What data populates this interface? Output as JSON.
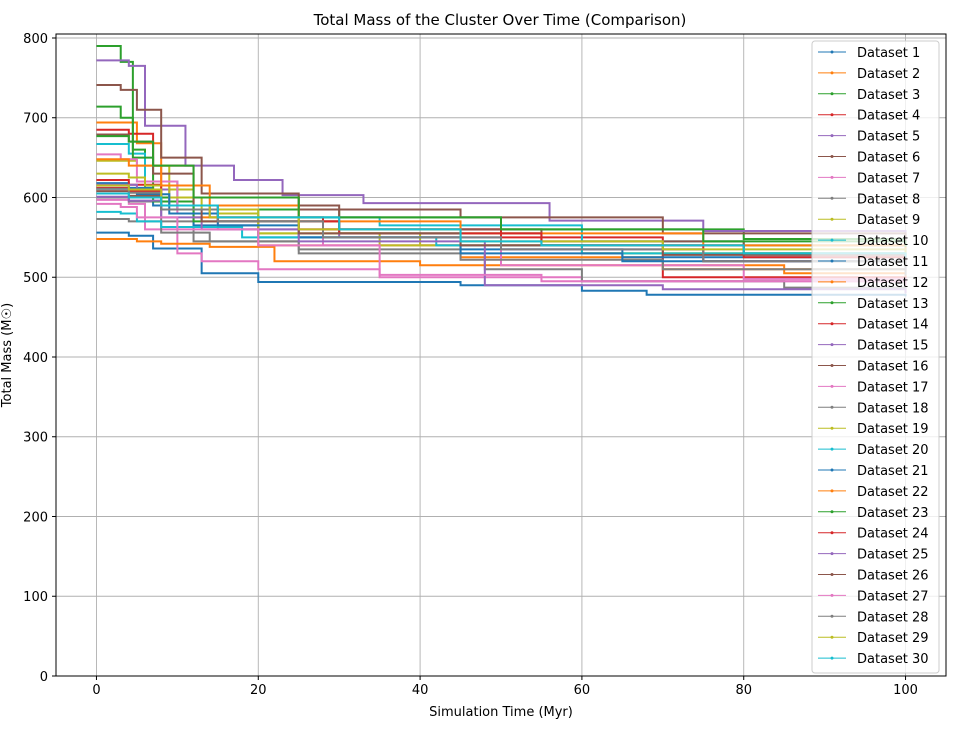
{
  "chart_data": {
    "type": "line",
    "title": "Total Mass of the Cluster Over Time (Comparison)",
    "xlabel": "Simulation Time (Myr)",
    "ylabel": "Total Mass (M☉)",
    "xlim": [
      -5,
      105
    ],
    "ylim": [
      0,
      805
    ],
    "xticks": [
      0,
      20,
      40,
      60,
      80,
      100
    ],
    "yticks": [
      0,
      100,
      200,
      300,
      400,
      500,
      600,
      700,
      800
    ],
    "grid": true,
    "legend_position": "top-right",
    "marker": "dot",
    "colors": [
      "#1f77b4",
      "#ff7f0e",
      "#2ca02c",
      "#d62728",
      "#9467bd",
      "#8c564b",
      "#e377c2",
      "#7f7f7f",
      "#bcbd22",
      "#17becf"
    ],
    "series": [
      {
        "name": "Dataset 1",
        "x": [
          0,
          4,
          7,
          13,
          20,
          45,
          60,
          68,
          100
        ],
        "y": [
          556,
          552,
          536,
          505,
          494,
          490,
          483,
          478,
          476
        ]
      },
      {
        "name": "Dataset 2",
        "x": [
          0,
          5,
          8,
          12,
          20,
          45,
          70,
          85,
          100
        ],
        "y": [
          694,
          668,
          600,
          575,
          540,
          525,
          515,
          505,
          500
        ]
      },
      {
        "name": "Dataset 3",
        "x": [
          0,
          3,
          4.5,
          6,
          10,
          30,
          50,
          80,
          100
        ],
        "y": [
          790,
          770,
          660,
          600,
          585,
          575,
          560,
          548,
          545
        ]
      },
      {
        "name": "Dataset 4",
        "x": [
          0,
          4,
          7,
          12,
          25,
          50,
          70,
          100
        ],
        "y": [
          685,
          680,
          640,
          600,
          560,
          550,
          500,
          490
        ]
      },
      {
        "name": "Dataset 5",
        "x": [
          0,
          4,
          6,
          11,
          17,
          23,
          33,
          56,
          75,
          100
        ],
        "y": [
          772,
          765,
          690,
          640,
          622,
          603,
          593,
          571,
          558,
          535
        ]
      },
      {
        "name": "Dataset 6",
        "x": [
          0,
          3,
          5,
          8,
          13,
          25,
          45,
          70,
          100
        ],
        "y": [
          741,
          735,
          710,
          650,
          605,
          585,
          575,
          555,
          540
        ]
      },
      {
        "name": "Dataset 7",
        "x": [
          0,
          4,
          6,
          10,
          13,
          20,
          35,
          60,
          100
        ],
        "y": [
          597,
          592,
          560,
          530,
          520,
          510,
          500,
          495,
          490
        ]
      },
      {
        "name": "Dataset 8",
        "x": [
          0,
          4,
          8,
          12,
          25,
          48,
          60,
          85,
          100
        ],
        "y": [
          600,
          595,
          570,
          545,
          530,
          510,
          495,
          487,
          485
        ]
      },
      {
        "name": "Dataset 9",
        "x": [
          0,
          5,
          9,
          12,
          20,
          40,
          60,
          100
        ],
        "y": [
          646,
          640,
          610,
          580,
          555,
          540,
          530,
          525
        ]
      },
      {
        "name": "Dataset 10",
        "x": [
          0,
          4,
          6,
          10,
          20,
          35,
          60,
          80,
          100
        ],
        "y": [
          667,
          655,
          620,
          585,
          575,
          565,
          545,
          530,
          520
        ]
      },
      {
        "name": "Dataset 11",
        "x": [
          0,
          4,
          7,
          12,
          20,
          45,
          65,
          100
        ],
        "y": [
          618,
          612,
          590,
          565,
          550,
          535,
          525,
          518
        ]
      },
      {
        "name": "Dataset 12",
        "x": [
          0,
          5,
          8,
          14,
          22,
          40,
          70,
          100
        ],
        "y": [
          548,
          545,
          542,
          538,
          520,
          515,
          510,
          505
        ]
      },
      {
        "name": "Dataset 13",
        "x": [
          0,
          3,
          4.5,
          7,
          12,
          30,
          55,
          100
        ],
        "y": [
          714,
          700,
          650,
          595,
          570,
          555,
          540,
          528
        ]
      },
      {
        "name": "Dataset 14",
        "x": [
          0,
          4,
          8,
          14,
          28,
          50,
          75,
          100
        ],
        "y": [
          622,
          616,
          590,
          575,
          560,
          540,
          520,
          508
        ]
      },
      {
        "name": "Dataset 15",
        "x": [
          0,
          5,
          9,
          15,
          30,
          50,
          75,
          100
        ],
        "y": [
          616,
          610,
          590,
          570,
          550,
          535,
          520,
          510
        ]
      },
      {
        "name": "Dataset 16",
        "x": [
          0,
          4,
          7,
          12,
          30,
          55,
          80,
          100
        ],
        "y": [
          679,
          670,
          630,
          590,
          560,
          545,
          530,
          525
        ]
      },
      {
        "name": "Dataset 17",
        "x": [
          0,
          3,
          5,
          10,
          15,
          28,
          50,
          80,
          100
        ],
        "y": [
          654,
          648,
          620,
          580,
          560,
          540,
          515,
          498,
          495
        ]
      },
      {
        "name": "Dataset 18",
        "x": [
          0,
          4,
          8,
          14,
          25,
          45,
          70,
          100
        ],
        "y": [
          573,
          570,
          556,
          545,
          535,
          522,
          510,
          502
        ]
      },
      {
        "name": "Dataset 19",
        "x": [
          0,
          4,
          6,
          9,
          13,
          20,
          35,
          60,
          100
        ],
        "y": [
          630,
          625,
          615,
          600,
          585,
          555,
          540,
          530,
          520
        ]
      },
      {
        "name": "Dataset 20",
        "x": [
          0,
          3,
          5,
          8,
          18,
          42,
          60,
          100
        ],
        "y": [
          582,
          580,
          570,
          563,
          550,
          540,
          530,
          525
        ]
      },
      {
        "name": "Dataset 21",
        "x": [
          0,
          5,
          9,
          15,
          25,
          45,
          65,
          100
        ],
        "y": [
          611,
          604,
          580,
          565,
          550,
          530,
          520,
          512
        ]
      },
      {
        "name": "Dataset 22",
        "x": [
          0,
          4,
          8,
          14,
          25,
          45,
          75,
          100
        ],
        "y": [
          648,
          640,
          615,
          590,
          570,
          555,
          540,
          532
        ]
      },
      {
        "name": "Dataset 23",
        "x": [
          0,
          4,
          7,
          12,
          25,
          50,
          75,
          100
        ],
        "y": [
          677,
          670,
          640,
          600,
          575,
          560,
          545,
          538
        ]
      },
      {
        "name": "Dataset 24",
        "x": [
          0,
          4,
          8,
          15,
          30,
          55,
          80,
          100
        ],
        "y": [
          612,
          608,
          590,
          570,
          555,
          540,
          525,
          518
        ]
      },
      {
        "name": "Dataset 25",
        "x": [
          0,
          4,
          8,
          13,
          25,
          48,
          70,
          100
        ],
        "y": [
          601,
          596,
          575,
          560,
          545,
          490,
          485,
          480
        ]
      },
      {
        "name": "Dataset 26",
        "x": [
          0,
          4,
          8,
          13,
          25,
          45,
          70,
          100
        ],
        "y": [
          608,
          602,
          585,
          570,
          555,
          540,
          528,
          520
        ]
      },
      {
        "name": "Dataset 27",
        "x": [
          0,
          3,
          5,
          10,
          20,
          35,
          55,
          100
        ],
        "y": [
          592,
          588,
          575,
          560,
          540,
          503,
          495,
          490
        ]
      },
      {
        "name": "Dataset 28",
        "x": [
          0,
          4,
          8,
          15,
          28,
          50,
          75,
          100
        ],
        "y": [
          611,
          606,
          585,
          570,
          550,
          535,
          520,
          512
        ]
      },
      {
        "name": "Dataset 29",
        "x": [
          0,
          4,
          8,
          14,
          25,
          45,
          70,
          100
        ],
        "y": [
          615,
          610,
          590,
          575,
          560,
          545,
          535,
          530
        ]
      },
      {
        "name": "Dataset 30",
        "x": [
          0,
          4,
          8,
          15,
          30,
          45,
          55,
          80,
          100
        ],
        "y": [
          605,
          600,
          590,
          575,
          560,
          545,
          540,
          530,
          525
        ]
      }
    ]
  }
}
